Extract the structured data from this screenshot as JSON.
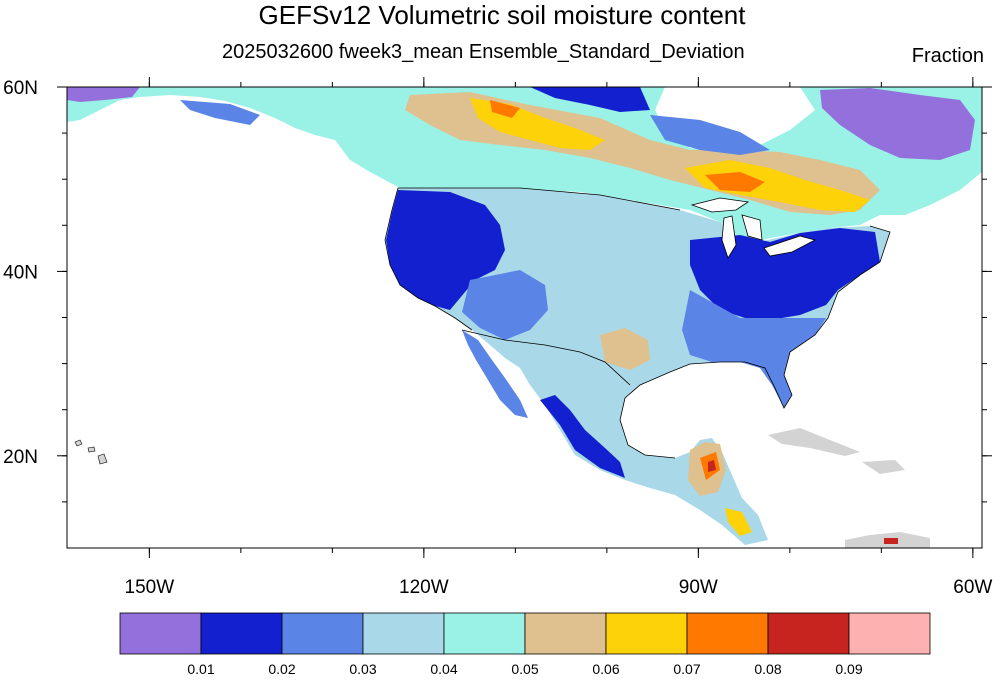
{
  "title": "GEFSv12 Volumetric soil moisture content",
  "subtitle": "2025032600 fweek3_mean Ensemble_Standard_Deviation",
  "units": "Fraction",
  "axes": {
    "x_ticks": [
      {
        "lon": -150,
        "label": "150W"
      },
      {
        "lon": -120,
        "label": "120W"
      },
      {
        "lon": -90,
        "label": "90W"
      },
      {
        "lon": -60,
        "label": "60W"
      }
    ],
    "y_ticks": [
      {
        "lat": 60,
        "label": "60N"
      },
      {
        "lat": 40,
        "label": "40N"
      },
      {
        "lat": 20,
        "label": "20N"
      }
    ],
    "lon_range": [
      -159,
      -59
    ],
    "lat_range": [
      10,
      60
    ]
  },
  "colorbar": {
    "colors": [
      "#9370db",
      "#1320cf",
      "#5a84e6",
      "#a9d8e8",
      "#9af2e7",
      "#dec18f",
      "#fdd208",
      "#ff7800",
      "#c7241f",
      "#feb1b1"
    ],
    "labels": [
      "0.01",
      "0.02",
      "0.03",
      "0.04",
      "0.05",
      "0.06",
      "0.07",
      "0.08",
      "0.09"
    ]
  }
}
